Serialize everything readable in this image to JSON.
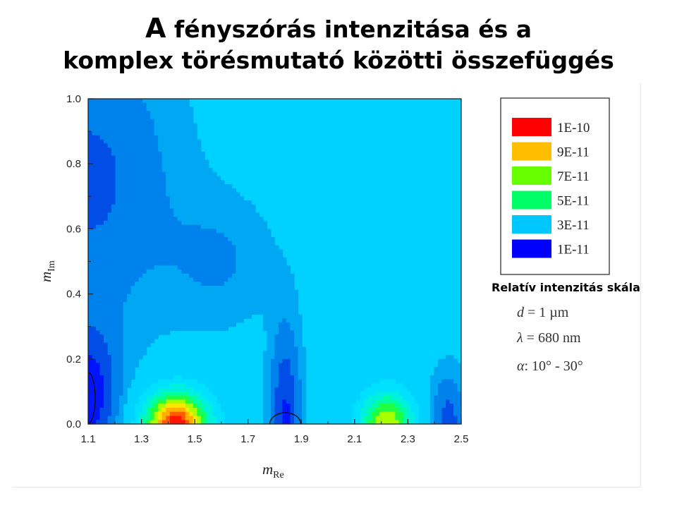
{
  "slide": {
    "title_lead": "A",
    "title_line1_rest": " fényszórás intenzitása és a",
    "title_line2": "komplex törésmutató közötti összefüggés",
    "legend_caption": "Relatív intenzitás skála"
  },
  "params": [
    {
      "sym": "d",
      "rest": " = 1 µm"
    },
    {
      "sym": "λ",
      "rest": " = 680 nm"
    },
    {
      "sym": "α",
      "rest": ": 10° - 30°"
    }
  ],
  "colors": {
    "background_level": "#00d2ff",
    "low_level": "#0000ff",
    "high_level": "#ff0000"
  },
  "chart_data": {
    "type": "heatmap",
    "xlabel_main": "m",
    "xlabel_sub": "Re",
    "ylabel_main": "m",
    "ylabel_sub": "Im",
    "xlim": [
      1.1,
      2.5
    ],
    "ylim": [
      0.0,
      1.0
    ],
    "x_ticks": [
      "1.1",
      "1.3",
      "1.5",
      "1.7",
      "1.9",
      "2.1",
      "2.3",
      "2.5"
    ],
    "y_ticks": [
      "0.0",
      "0.2",
      "0.4",
      "0.6",
      "0.8",
      "1.0"
    ],
    "legend": [
      {
        "label": "1E-10",
        "color": "#ff0000"
      },
      {
        "label": "9E-11",
        "color": "#ffbf00"
      },
      {
        "label": "7E-11",
        "color": "#66ff00"
      },
      {
        "label": "5E-11",
        "color": "#00ff66"
      },
      {
        "label": "3E-11",
        "color": "#00c8ff"
      },
      {
        "label": "1E-11",
        "color": "#0000ff"
      }
    ],
    "peaks": [
      {
        "x": 1.43,
        "y": 0.0,
        "level": "1E-10"
      },
      {
        "x": 2.22,
        "y": 0.0,
        "level": "7E-11"
      }
    ],
    "minima": [
      {
        "x": 1.1,
        "y": 0.08,
        "level": "1E-11"
      },
      {
        "x": 1.84,
        "y": 0.0,
        "level": "1E-11"
      },
      {
        "x": 2.45,
        "y": 0.0,
        "level": "1E-11"
      }
    ]
  }
}
